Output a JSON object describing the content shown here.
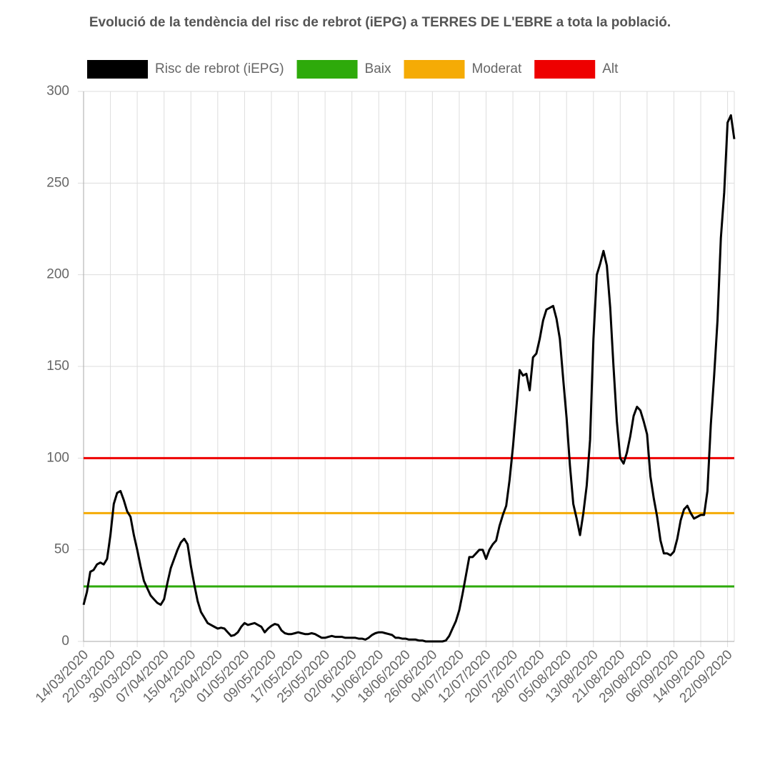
{
  "chart_data": {
    "type": "line",
    "title": "Evolució de la tendència del risc de rebrot (iEPG) a TERRES DE L'EBRE a tota la població.",
    "categories": [
      "14/03/2020",
      null,
      null,
      null,
      null,
      null,
      null,
      null,
      "22/03/2020",
      null,
      null,
      null,
      null,
      null,
      null,
      null,
      "30/03/2020",
      null,
      null,
      null,
      null,
      null,
      null,
      null,
      "07/04/2020",
      null,
      null,
      null,
      null,
      null,
      null,
      null,
      "15/04/2020",
      null,
      null,
      null,
      null,
      null,
      null,
      null,
      "23/04/2020",
      null,
      null,
      null,
      null,
      null,
      null,
      null,
      "01/05/2020",
      null,
      null,
      null,
      null,
      null,
      null,
      null,
      "09/05/2020",
      null,
      null,
      null,
      null,
      null,
      null,
      null,
      "17/05/2020",
      null,
      null,
      null,
      null,
      null,
      null,
      null,
      "25/05/2020",
      null,
      null,
      null,
      null,
      null,
      null,
      null,
      "02/06/2020",
      null,
      null,
      null,
      null,
      null,
      null,
      null,
      "10/06/2020",
      null,
      null,
      null,
      null,
      null,
      null,
      null,
      "18/06/2020",
      null,
      null,
      null,
      null,
      null,
      null,
      null,
      "26/06/2020",
      null,
      null,
      null,
      null,
      null,
      null,
      null,
      "04/07/2020",
      null,
      null,
      null,
      null,
      null,
      null,
      null,
      "12/07/2020",
      null,
      null,
      null,
      null,
      null,
      null,
      null,
      "20/07/2020",
      null,
      null,
      null,
      null,
      null,
      null,
      null,
      "28/07/2020",
      null,
      null,
      null,
      null,
      null,
      null,
      null,
      "05/08/2020",
      null,
      null,
      null,
      null,
      null,
      null,
      null,
      "13/08/2020",
      null,
      null,
      null,
      null,
      null,
      null,
      null,
      "21/08/2020",
      null,
      null,
      null,
      null,
      null,
      null,
      null,
      "29/08/2020",
      null,
      null,
      null,
      null,
      null,
      null,
      null,
      "06/09/2020",
      null,
      null,
      null,
      null,
      null,
      null,
      null,
      "14/09/2020",
      null,
      null,
      null,
      null,
      null,
      null,
      null,
      "22/09/2020",
      null,
      null
    ],
    "series": [
      {
        "name": "Risc de rebrot (iEPG)",
        "color": "#000000",
        "values": [
          20,
          27,
          38,
          39,
          42,
          43,
          42,
          45,
          58,
          75,
          81,
          82,
          77,
          71,
          68,
          58,
          50,
          41,
          33,
          29,
          25,
          23,
          21,
          20,
          23,
          32,
          40,
          45,
          50,
          54,
          56,
          53,
          41,
          31,
          22,
          16,
          13,
          10,
          9,
          8,
          7,
          7.5,
          7,
          5,
          3,
          3.5,
          5,
          8,
          10,
          9,
          9.5,
          10,
          9,
          8,
          5,
          7,
          8.5,
          9.5,
          9,
          6,
          4.5,
          4,
          4,
          4.5,
          5,
          4.5,
          4,
          4,
          4.5,
          4,
          3,
          2,
          2,
          2.5,
          3,
          2.5,
          2.5,
          2.5,
          2,
          2,
          2,
          2,
          1.5,
          1.5,
          1,
          2,
          3.5,
          4.5,
          5,
          5,
          4.5,
          4,
          3.5,
          2,
          2,
          1.5,
          1.5,
          1,
          1,
          1,
          0.5,
          0.5,
          0,
          0,
          0,
          0,
          0,
          0,
          0.5,
          3,
          7,
          11,
          17,
          26,
          36,
          46,
          46,
          48,
          50,
          50,
          45,
          50,
          53,
          55,
          63,
          69,
          74,
          88,
          106,
          127,
          148,
          145,
          146,
          137,
          155,
          157,
          165,
          175,
          181,
          182,
          183,
          176,
          165,
          143,
          122,
          96,
          75,
          67,
          58,
          70,
          85,
          110,
          165,
          200,
          206,
          213,
          205,
          182,
          150,
          120,
          100,
          97,
          103,
          112,
          123,
          128,
          126,
          120,
          113,
          90,
          78,
          68,
          55,
          48,
          48,
          47,
          49,
          56,
          66,
          72,
          74,
          70,
          67,
          68,
          69,
          69,
          82,
          118,
          145,
          175,
          220,
          245,
          283,
          287,
          274
        ]
      }
    ],
    "reference_lines": [
      {
        "name": "Baix",
        "color": "#2eaa0b",
        "value": 30
      },
      {
        "name": "Moderat",
        "color": "#f5ab05",
        "value": 70
      },
      {
        "name": "Alt",
        "color": "#ee0000",
        "value": 100
      }
    ],
    "ylim": [
      0,
      300
    ],
    "yticks": [
      0,
      50,
      100,
      150,
      200,
      250,
      300
    ],
    "grid": true
  }
}
